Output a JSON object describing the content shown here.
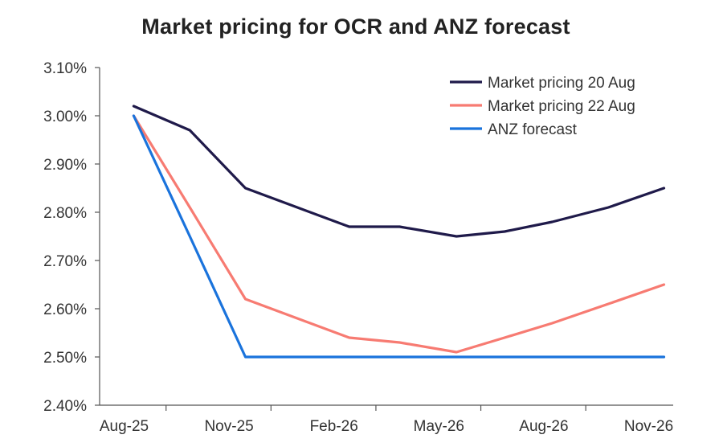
{
  "chart_data": {
    "type": "line",
    "title": "Market pricing for OCR and ANZ forecast",
    "xlabel": "",
    "ylabel": "",
    "x_ticks": [
      "Aug-25",
      "Nov-25",
      "Feb-26",
      "May-26",
      "Aug-26",
      "Nov-26"
    ],
    "y_ticks": [
      "2.40%",
      "2.50%",
      "2.60%",
      "2.70%",
      "2.80%",
      "2.90%",
      "3.00%",
      "3.10%"
    ],
    "ylim": [
      2.4,
      3.1
    ],
    "xlim": [
      "Aug-25",
      "Nov-26"
    ],
    "grid": false,
    "legend_position": "top-right",
    "series": [
      {
        "name": "Market pricing 20 Aug",
        "color": "#1f1a4a",
        "points": [
          {
            "x": "2025-08-20",
            "y": 3.02
          },
          {
            "x": "2025-10-08",
            "y": 2.97
          },
          {
            "x": "2025-11-26",
            "y": 2.85
          },
          {
            "x": "2026-02-25",
            "y": 2.77
          },
          {
            "x": "2026-04-08",
            "y": 2.77
          },
          {
            "x": "2026-05-27",
            "y": 2.75
          },
          {
            "x": "2026-07-08",
            "y": 2.76
          },
          {
            "x": "2026-08-19",
            "y": 2.78
          },
          {
            "x": "2026-10-07",
            "y": 2.81
          },
          {
            "x": "2026-11-25",
            "y": 2.85
          }
        ]
      },
      {
        "name": "Market pricing 22 Aug",
        "color": "#f77b72",
        "points": [
          {
            "x": "2025-08-20",
            "y": 3.0
          },
          {
            "x": "2025-10-08",
            "y": 2.81
          },
          {
            "x": "2025-11-26",
            "y": 2.62
          },
          {
            "x": "2026-02-25",
            "y": 2.54
          },
          {
            "x": "2026-04-08",
            "y": 2.53
          },
          {
            "x": "2026-05-27",
            "y": 2.51
          },
          {
            "x": "2026-07-08",
            "y": 2.54
          },
          {
            "x": "2026-08-19",
            "y": 2.57
          },
          {
            "x": "2026-10-07",
            "y": 2.61
          },
          {
            "x": "2026-11-25",
            "y": 2.65
          }
        ]
      },
      {
        "name": "ANZ forecast",
        "color": "#1a73dc",
        "points": [
          {
            "x": "2025-08-20",
            "y": 3.0
          },
          {
            "x": "2025-10-08",
            "y": 2.75
          },
          {
            "x": "2025-11-26",
            "y": 2.5
          },
          {
            "x": "2026-02-25",
            "y": 2.5
          },
          {
            "x": "2026-04-08",
            "y": 2.5
          },
          {
            "x": "2026-05-27",
            "y": 2.5
          },
          {
            "x": "2026-07-08",
            "y": 2.5
          },
          {
            "x": "2026-08-19",
            "y": 2.5
          },
          {
            "x": "2026-10-07",
            "y": 2.5
          },
          {
            "x": "2026-11-25",
            "y": 2.5
          }
        ]
      }
    ]
  }
}
